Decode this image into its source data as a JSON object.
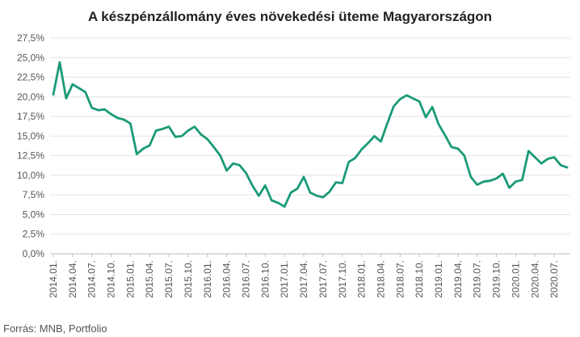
{
  "chart_data": {
    "type": "line",
    "title": "A készpénzállomány éves növekedési üteme Magyarországon",
    "source": "Forrás: MNB, Portfolio",
    "y_ticks": [
      "0,0%",
      "2,5%",
      "5,0%",
      "7,5%",
      "10,0%",
      "12,5%",
      "15,0%",
      "17,5%",
      "20,0%",
      "22,5%",
      "25,0%",
      "27,5%"
    ],
    "ylim": [
      0,
      27.5
    ],
    "grid": true,
    "line_color": "#1a9a78",
    "x_ticks": [
      "2014.01.",
      "2014.04.",
      "2014.07.",
      "2014.10.",
      "2015.01.",
      "2015.04.",
      "2015.07.",
      "2015.10.",
      "2016.01.",
      "2016.04.",
      "2016.07.",
      "2016.10.",
      "2017.01.",
      "2017.04.",
      "2017.07.",
      "2017.10.",
      "2018.01.",
      "2018.04.",
      "2018.07.",
      "2018.10.",
      "2019.01.",
      "2019.04.",
      "2019.07.",
      "2019.10.",
      "2020.01.",
      "2020.04.",
      "2020.07."
    ],
    "series": [
      {
        "x": [
          "2014.01.",
          "2014.02.",
          "2014.03.",
          "2014.04.",
          "2014.05.",
          "2014.06.",
          "2014.07.",
          "2014.08.",
          "2014.09.",
          "2014.10.",
          "2014.11.",
          "2014.12.",
          "2015.01.",
          "2015.02.",
          "2015.03.",
          "2015.04.",
          "2015.05.",
          "2015.06.",
          "2015.07.",
          "2015.08.",
          "2015.09.",
          "2015.10.",
          "2015.11.",
          "2015.12.",
          "2016.01.",
          "2016.02.",
          "2016.03.",
          "2016.04.",
          "2016.05.",
          "2016.06.",
          "2016.07.",
          "2016.08.",
          "2016.09.",
          "2016.10.",
          "2016.11.",
          "2016.12.",
          "2017.01.",
          "2017.02.",
          "2017.03.",
          "2017.04.",
          "2017.05.",
          "2017.06.",
          "2017.07.",
          "2017.08.",
          "2017.09.",
          "2017.10.",
          "2017.11.",
          "2017.12.",
          "2018.01.",
          "2018.02.",
          "2018.03.",
          "2018.04.",
          "2018.05.",
          "2018.06.",
          "2018.07.",
          "2018.08.",
          "2018.09.",
          "2018.10.",
          "2018.11.",
          "2018.12.",
          "2019.01.",
          "2019.02.",
          "2019.03.",
          "2019.04.",
          "2019.05.",
          "2019.06.",
          "2019.07.",
          "2019.08.",
          "2019.09.",
          "2019.10.",
          "2019.11.",
          "2019.12.",
          "2020.01.",
          "2020.02.",
          "2020.03.",
          "2020.04.",
          "2020.05.",
          "2020.06.",
          "2020.07.",
          "2020.08.",
          "2020.09."
        ],
        "values": [
          20.3,
          24.4,
          19.8,
          21.6,
          21.1,
          20.6,
          18.6,
          18.3,
          18.4,
          17.8,
          17.3,
          17.1,
          16.6,
          12.7,
          13.4,
          13.8,
          15.7,
          15.9,
          16.2,
          14.9,
          15.0,
          15.7,
          16.2,
          15.2,
          14.6,
          13.6,
          12.5,
          10.6,
          11.5,
          11.3,
          10.3,
          8.7,
          7.4,
          8.7,
          6.8,
          6.5,
          6.0,
          7.8,
          8.3,
          9.8,
          7.8,
          7.4,
          7.2,
          7.9,
          9.1,
          9.0,
          11.7,
          12.2,
          13.3,
          14.1,
          15.0,
          14.3,
          16.6,
          18.8,
          19.7,
          20.2,
          19.8,
          19.4,
          17.4,
          18.7,
          16.5,
          15.1,
          13.6,
          13.4,
          12.5,
          9.8,
          8.8,
          9.2,
          9.3,
          9.6,
          10.2,
          8.4,
          9.2,
          9.4,
          13.1,
          12.3,
          11.5,
          12.1,
          12.3,
          11.3,
          11.0
        ]
      }
    ]
  }
}
